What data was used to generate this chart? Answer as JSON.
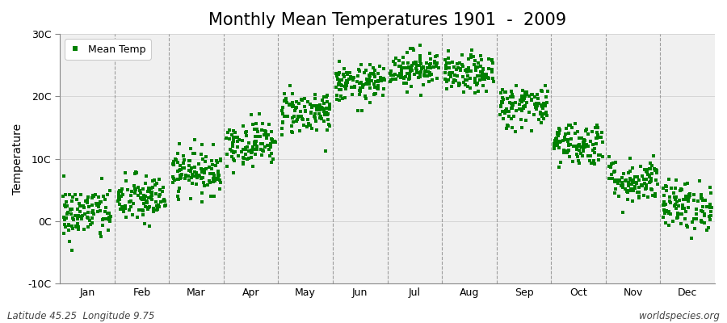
{
  "title": "Monthly Mean Temperatures 1901  -  2009",
  "ylabel": "Temperature",
  "dot_color": "#008000",
  "plot_bg_color": "#F0F0F0",
  "figure_bg": "#FFFFFF",
  "ylim": [
    -10,
    30
  ],
  "yticks": [
    -10,
    0,
    10,
    20,
    30
  ],
  "ytick_labels": [
    "-10C",
    "0C",
    "10C",
    "20C",
    "30C"
  ],
  "months": [
    "Jan",
    "Feb",
    "Mar",
    "Apr",
    "May",
    "Jun",
    "Jul",
    "Aug",
    "Sep",
    "Oct",
    "Nov",
    "Dec"
  ],
  "month_means": [
    1.2,
    3.5,
    8.0,
    12.5,
    17.5,
    22.0,
    24.5,
    23.5,
    18.5,
    12.5,
    6.5,
    2.5
  ],
  "month_stds": [
    2.2,
    2.0,
    1.8,
    1.8,
    1.8,
    1.5,
    1.5,
    1.5,
    1.8,
    1.8,
    1.8,
    2.0
  ],
  "n_years": 109,
  "legend_label": "Mean Temp",
  "footer_left": "Latitude 45.25  Longitude 9.75",
  "footer_right": "worldspecies.org",
  "marker_size": 8,
  "title_fontsize": 15,
  "axis_fontsize": 10,
  "tick_fontsize": 9,
  "footer_fontsize": 8.5
}
